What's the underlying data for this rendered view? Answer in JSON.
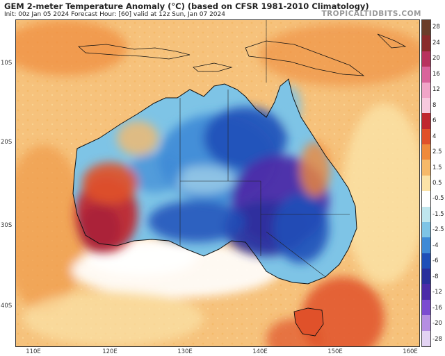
{
  "header": {
    "title": "GEM 2-meter Temperature Anomaly (°C) (based on CFSR 1981-2010 Climatology)",
    "subtitle": "Init: 00z Jan 05 2024   Forecast Hour: [60]   valid at 12z Sun, Jan 07 2024",
    "brand": "TROPICALTIDBITS.COM"
  },
  "axes": {
    "lat_labels": [
      "10S",
      "20S",
      "30S",
      "40S"
    ],
    "lon_labels": [
      "110E",
      "120E",
      "130E",
      "140E",
      "150E",
      "160E"
    ]
  },
  "colorbar": {
    "labels": [
      "28",
      "24",
      "20",
      "16",
      "12",
      "8",
      "6",
      "4",
      "2.5",
      "1.5",
      "0.5",
      "-0.5",
      "-1.5",
      "-2.5",
      "-4",
      "-6",
      "-8",
      "-12",
      "-16",
      "-20",
      "-28"
    ],
    "colors": [
      "#6b3d2a",
      "#8a2b2b",
      "#b8325e",
      "#d9639b",
      "#f0a5c8",
      "#f7c9de",
      "#c0262f",
      "#e0512a",
      "#ef8a3b",
      "#f6b96a",
      "#fbe3a8",
      "#ffffff",
      "#bfe6ee",
      "#7ec4e6",
      "#3f8ad6",
      "#1f4fb8",
      "#2a2f9c",
      "#4b2aa8",
      "#7b4bd0",
      "#b58ee2",
      "#e3d3f3"
    ]
  }
}
